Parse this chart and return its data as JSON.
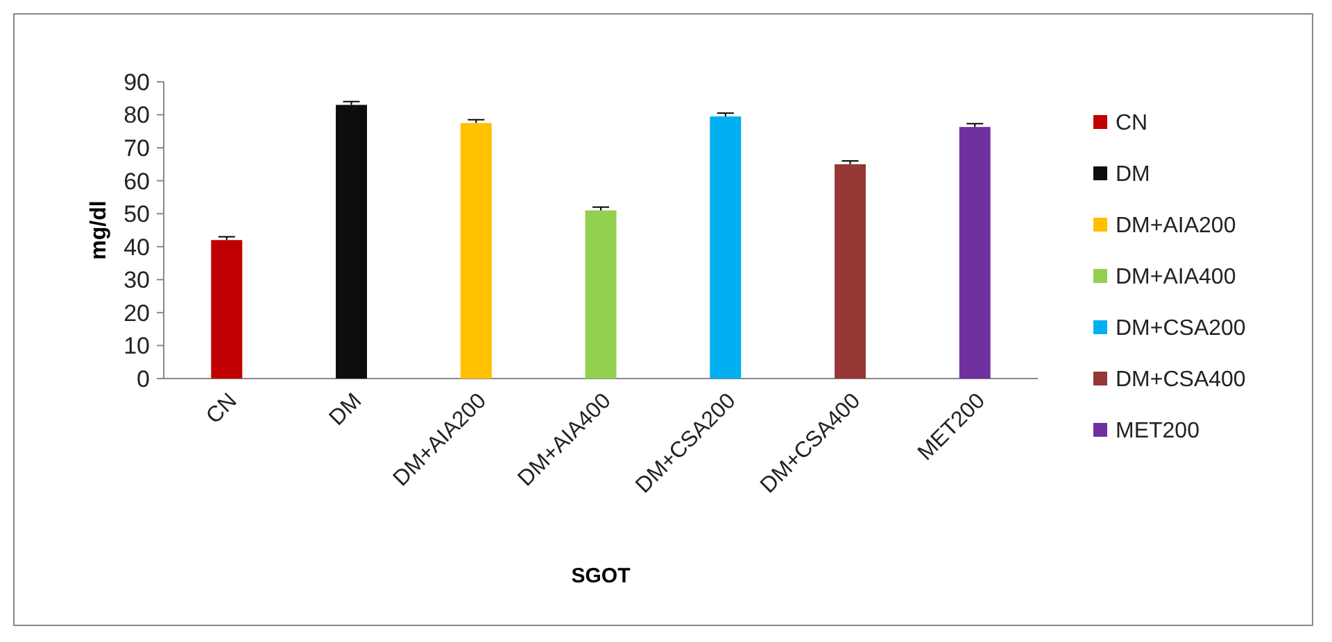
{
  "chart_data": {
    "type": "bar",
    "xlabel": "SGOT",
    "ylabel": "mg/dl",
    "categories": [
      "CN",
      "DM",
      "DM+AIA200",
      "DM+AIA400",
      "DM+CSA200",
      "DM+CSA400",
      "MET200"
    ],
    "series": [
      {
        "name": "CN",
        "color": "#c00000",
        "values": [
          42,
          null,
          null,
          null,
          null,
          null,
          null
        ],
        "errors": [
          1,
          null,
          null,
          null,
          null,
          null,
          null
        ]
      },
      {
        "name": "DM",
        "color": "#0d0d0d",
        "values": [
          null,
          83,
          null,
          null,
          null,
          null,
          null
        ],
        "errors": [
          null,
          1,
          null,
          null,
          null,
          null,
          null
        ]
      },
      {
        "name": "DM+AIA200",
        "color": "#ffc000",
        "values": [
          null,
          null,
          77.5,
          null,
          null,
          null,
          null
        ],
        "errors": [
          null,
          null,
          1,
          null,
          null,
          null,
          null
        ]
      },
      {
        "name": "DM+AIA400",
        "color": "#92d050",
        "values": [
          null,
          null,
          null,
          51,
          null,
          null,
          null
        ],
        "errors": [
          null,
          null,
          null,
          1,
          null,
          null,
          null
        ]
      },
      {
        "name": "DM+CSA200",
        "color": "#00b0f0",
        "values": [
          null,
          null,
          null,
          null,
          79.5,
          null,
          null
        ],
        "errors": [
          null,
          null,
          null,
          null,
          1,
          null,
          null
        ]
      },
      {
        "name": "DM+CSA400",
        "color": "#953735",
        "values": [
          null,
          null,
          null,
          null,
          null,
          65,
          null
        ],
        "errors": [
          null,
          null,
          null,
          null,
          null,
          1,
          null
        ]
      },
      {
        "name": "MET200",
        "color": "#7030a0",
        "values": [
          null,
          null,
          null,
          null,
          null,
          null,
          76.3
        ],
        "errors": [
          null,
          null,
          null,
          null,
          null,
          null,
          1
        ]
      }
    ],
    "ylim": [
      0,
      90
    ],
    "yticks": [
      0,
      10,
      20,
      30,
      40,
      50,
      60,
      70,
      80,
      90
    ],
    "grid": false,
    "legend": "right"
  }
}
